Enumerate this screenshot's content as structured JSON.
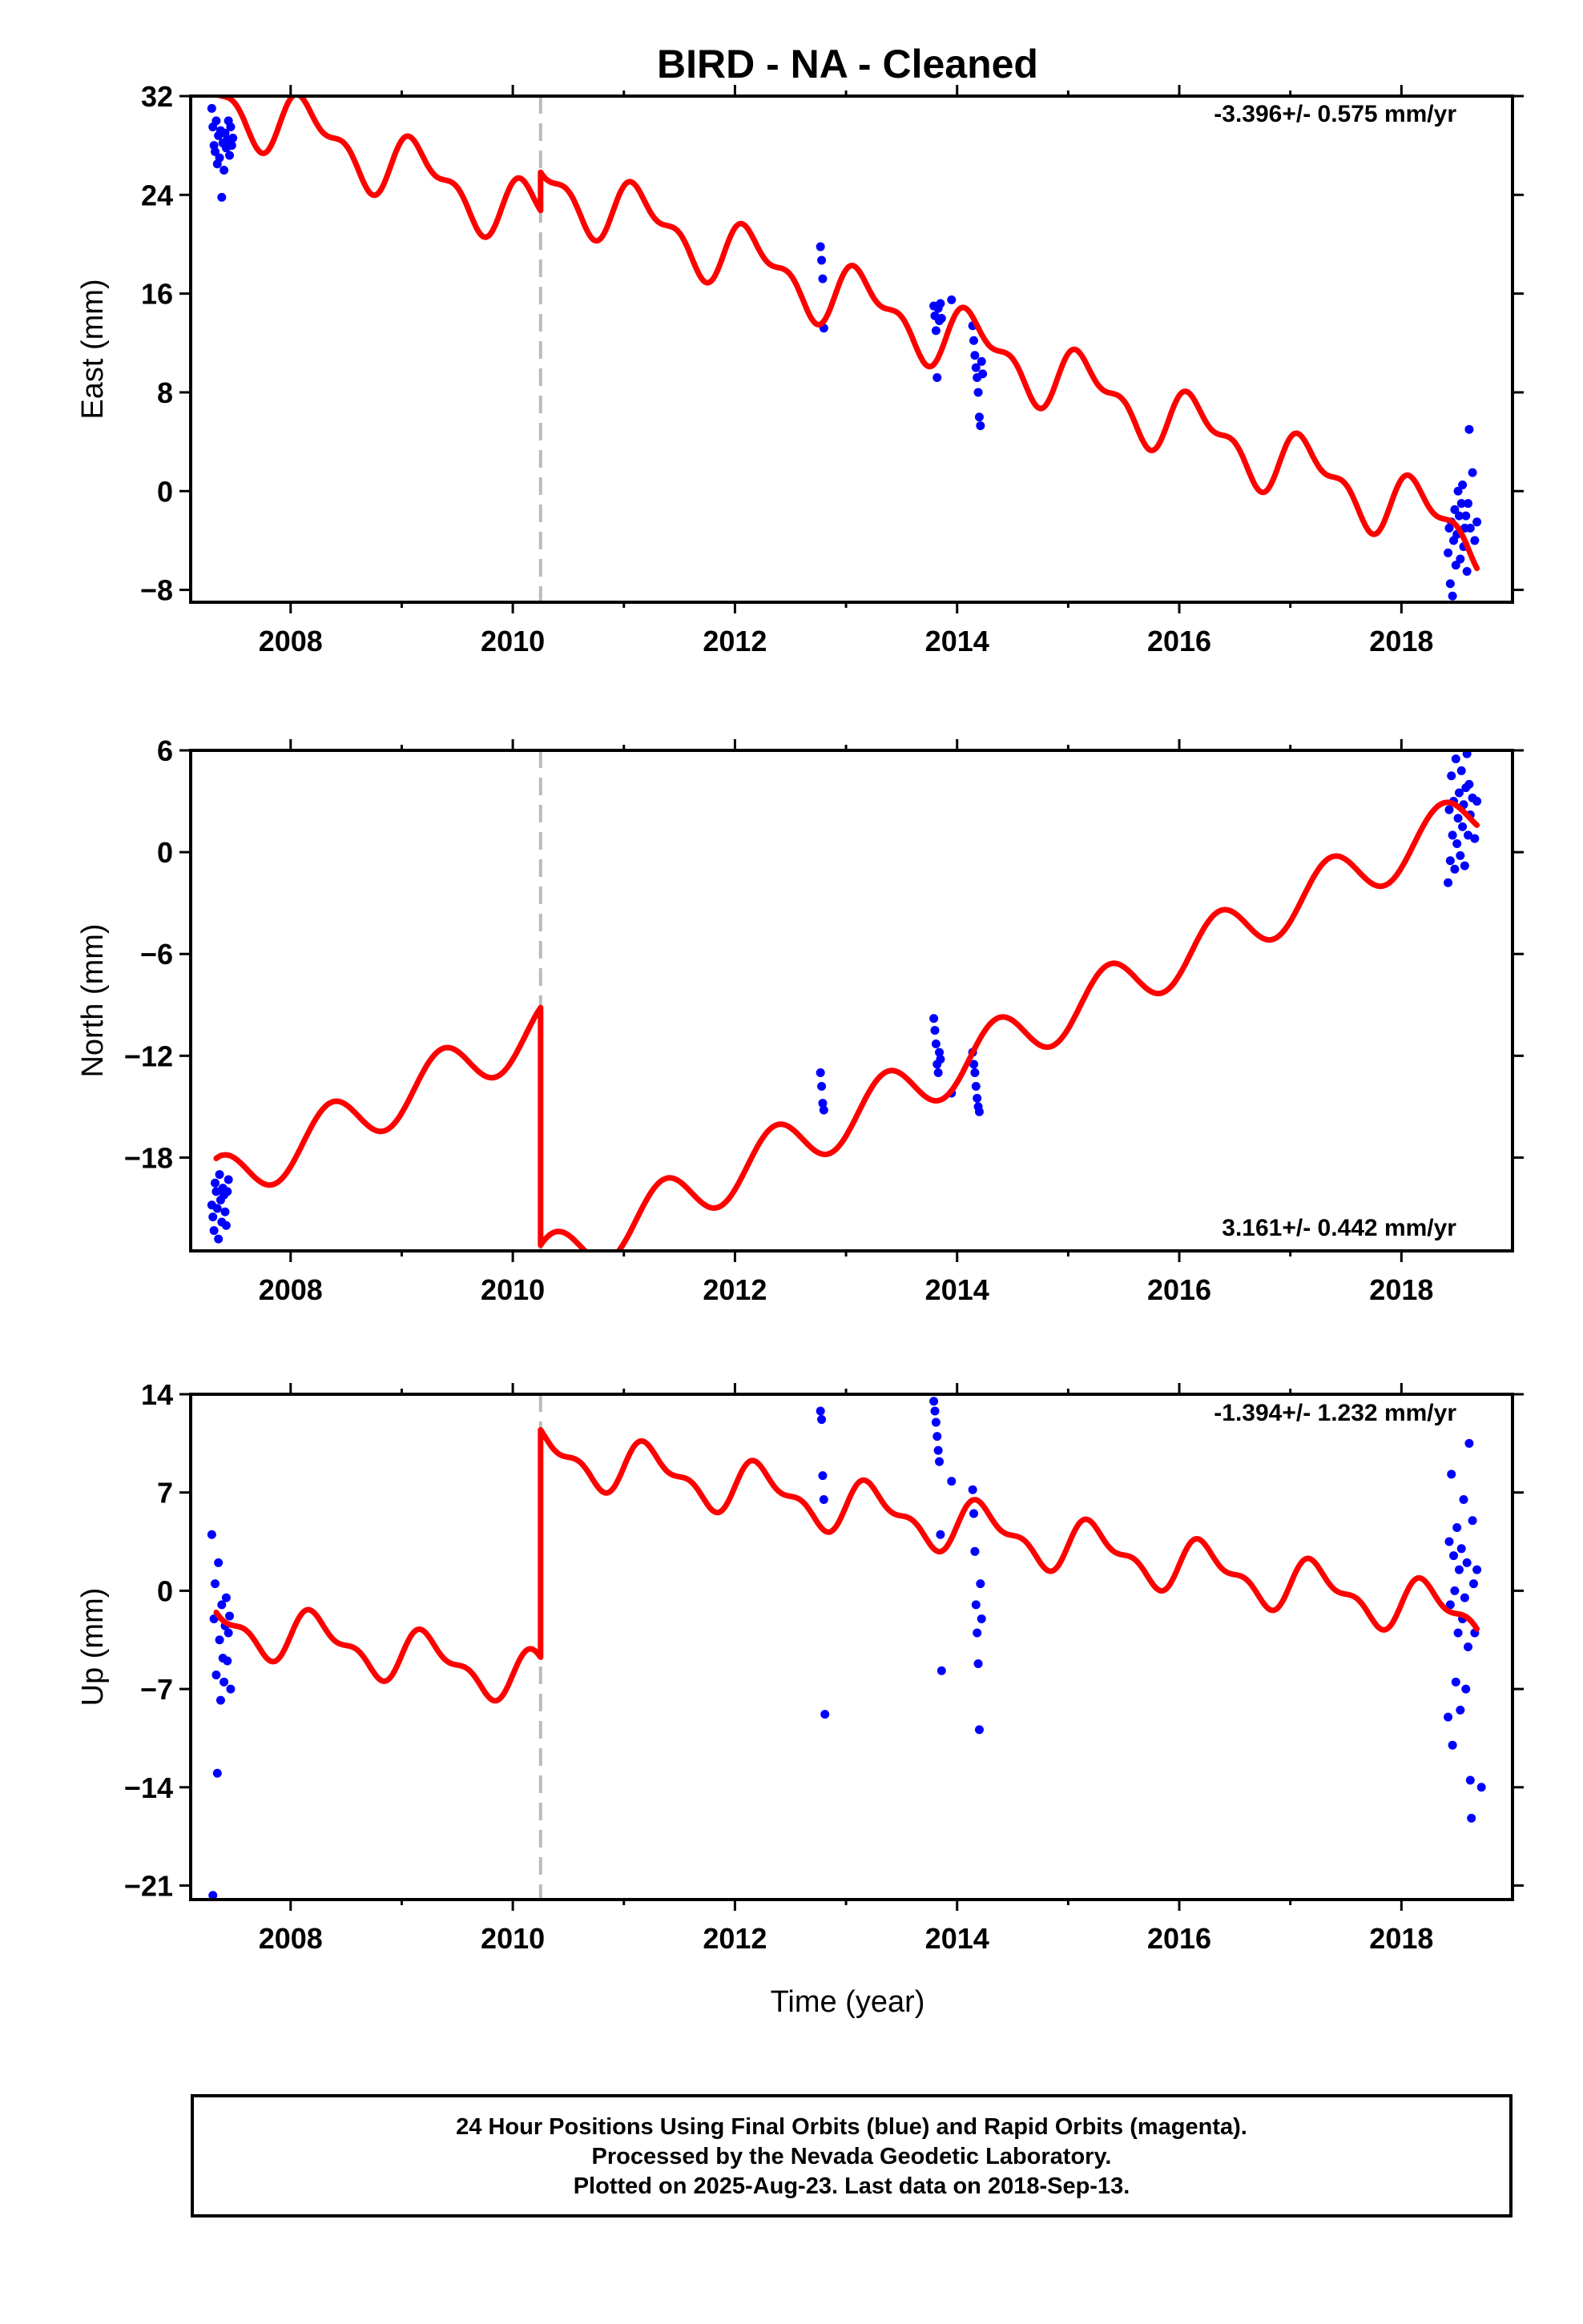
{
  "title": "BIRD  - NA - Cleaned",
  "xlabel": "Time (year)",
  "footer": {
    "line1": "24 Hour Positions Using Final Orbits (blue) and Rapid Orbits (magenta).",
    "line2": "Processed by the Nevada Geodetic Laboratory.",
    "line3": "Plotted on 2025-Aug-23. Last data on 2018-Sep-13."
  },
  "colors": {
    "model": "#ff0000",
    "final_orbits": "#0000ff",
    "break_line": "#bbbbbb",
    "axes": "#000000"
  },
  "chart_data": [
    {
      "type": "scatter",
      "component": "east",
      "ylabel": "East (mm)",
      "ylim": [
        -9,
        32
      ],
      "yticks": [
        32,
        24,
        16,
        8,
        0,
        -8
      ],
      "xlim": [
        2007.1,
        2019.0
      ],
      "xticks": [
        2008,
        2010,
        2012,
        2014,
        2016,
        2018
      ],
      "rate_label": "-3.396+/- 0.575 mm/yr",
      "break_epoch": 2010.25,
      "model": {
        "rate": -3.396,
        "value_at_2008": 29.6,
        "offset_at_break": 3.1,
        "annual_amp": 2.2,
        "semiannual_amp": 1.2,
        "annual_phase": 0.5,
        "semiannual_phase": 1.3
      },
      "series": [
        {
          "color": "blue",
          "x": [
            2007.29,
            2007.3,
            2007.31,
            2007.32,
            2007.33,
            2007.34,
            2007.35,
            2007.36,
            2007.37,
            2007.38,
            2007.39,
            2007.4,
            2007.41,
            2007.42,
            2007.43,
            2007.44,
            2007.45,
            2007.46,
            2007.47,
            2007.48,
            2012.77,
            2012.78,
            2012.79,
            2012.8,
            2013.79,
            2013.8,
            2013.81,
            2013.82,
            2013.83,
            2013.84,
            2013.85,
            2013.86,
            2013.95,
            2014.14,
            2014.15,
            2014.16,
            2014.17,
            2014.18,
            2014.19,
            2014.2,
            2014.21,
            2014.22,
            2014.23,
            2018.42,
            2018.43,
            2018.44,
            2018.45,
            2018.46,
            2018.47,
            2018.48,
            2018.49,
            2018.5,
            2018.51,
            2018.52,
            2018.53,
            2018.54,
            2018.55,
            2018.56,
            2018.57,
            2018.58,
            2018.59,
            2018.6,
            2018.61,
            2018.62,
            2018.64,
            2018.66,
            2018.68
          ],
          "y": [
            31.0,
            29.5,
            28.0,
            27.5,
            30.0,
            26.5,
            28.8,
            27.0,
            29.2,
            23.8,
            28.2,
            26.0,
            29.0,
            27.8,
            28.5,
            30.0,
            27.2,
            29.5,
            28.0,
            28.6,
            19.8,
            18.7,
            17.2,
            13.2,
            15.0,
            14.2,
            13.0,
            9.2,
            14.8,
            13.8,
            15.2,
            14.0,
            15.5,
            13.4,
            12.2,
            11.0,
            10.0,
            9.2,
            8.0,
            6.0,
            5.3,
            10.5,
            9.5,
            -5.0,
            -3.0,
            -7.5,
            -2.5,
            -8.5,
            -4.0,
            -1.5,
            -6.0,
            -3.5,
            0.0,
            -2.0,
            -5.5,
            -1.0,
            0.5,
            -4.5,
            -3.0,
            -2.0,
            -6.5,
            -1.0,
            5.0,
            -3.0,
            1.5,
            -4.0,
            -2.5
          ]
        }
      ]
    },
    {
      "type": "scatter",
      "component": "north",
      "ylabel": "North (mm)",
      "ylim": [
        -23.5,
        6
      ],
      "yticks": [
        6,
        0,
        -6,
        -12,
        -18
      ],
      "xlim": [
        2007.1,
        2019.0
      ],
      "xticks": [
        2008,
        2010,
        2012,
        2014,
        2016,
        2018
      ],
      "rate_label": "3.161+/- 0.442 mm/yr",
      "break_epoch": 2010.25,
      "model": {
        "rate": 3.161,
        "value_at_2008": -17.5,
        "offset_at_break": -14.0,
        "annual_amp": 1.6,
        "semiannual_amp": 0.0,
        "annual_phase": -0.7,
        "semiannual_phase": 0.0
      },
      "series": [
        {
          "color": "blue",
          "x": [
            2007.29,
            2007.3,
            2007.31,
            2007.32,
            2007.33,
            2007.34,
            2007.35,
            2007.36,
            2007.37,
            2007.38,
            2007.39,
            2007.4,
            2007.41,
            2007.42,
            2007.43,
            2007.44,
            2012.77,
            2012.78,
            2012.79,
            2012.8,
            2013.79,
            2013.8,
            2013.81,
            2013.82,
            2013.83,
            2013.84,
            2013.85,
            2013.95,
            2014.14,
            2014.15,
            2014.16,
            2014.17,
            2014.18,
            2014.19,
            2014.2,
            2018.42,
            2018.43,
            2018.44,
            2018.45,
            2018.46,
            2018.47,
            2018.48,
            2018.49,
            2018.5,
            2018.51,
            2018.52,
            2018.53,
            2018.54,
            2018.55,
            2018.56,
            2018.57,
            2018.58,
            2018.59,
            2018.6,
            2018.61,
            2018.62,
            2018.64,
            2018.66,
            2018.68
          ],
          "y": [
            -20.8,
            -21.5,
            -22.3,
            -19.5,
            -20.0,
            -21.0,
            -22.8,
            -19.0,
            -20.5,
            -21.8,
            -19.8,
            -20.2,
            -21.2,
            -22.0,
            -20.0,
            -19.3,
            -13.0,
            -13.8,
            -14.8,
            -15.2,
            -9.8,
            -10.5,
            -11.3,
            -12.5,
            -13.0,
            -11.8,
            -12.2,
            -14.2,
            -11.8,
            -12.5,
            -13.0,
            -13.8,
            -14.5,
            -15.0,
            -15.3,
            -1.8,
            2.5,
            -0.5,
            4.5,
            1.0,
            3.0,
            -1.0,
            5.5,
            0.5,
            2.0,
            3.5,
            -0.2,
            4.8,
            1.5,
            2.8,
            -0.8,
            3.8,
            5.8,
            1.0,
            4.0,
            2.2,
            3.2,
            0.8,
            3.0
          ]
        }
      ]
    },
    {
      "type": "scatter",
      "component": "up",
      "ylabel": "Up (mm)",
      "ylim": [
        -22,
        14
      ],
      "yticks": [
        14,
        7,
        0,
        -7,
        -14,
        -21
      ],
      "xlim": [
        2007.1,
        2019.0
      ],
      "xticks": [
        2008,
        2010,
        2012,
        2014,
        2016,
        2018
      ],
      "rate_label": "-1.394+/- 1.232 mm/yr",
      "break_epoch": 2010.25,
      "model": {
        "rate": -1.394,
        "value_at_2008": -3.2,
        "offset_at_break": 16.2,
        "annual_amp": 1.6,
        "semiannual_amp": 0.8,
        "annual_phase": 0.0,
        "semiannual_phase": 0.0
      },
      "series": [
        {
          "color": "blue",
          "x": [
            2007.29,
            2007.3,
            2007.31,
            2007.32,
            2007.33,
            2007.34,
            2007.35,
            2007.36,
            2007.37,
            2007.38,
            2007.39,
            2007.4,
            2007.41,
            2007.42,
            2007.43,
            2007.44,
            2007.45,
            2007.46,
            2012.77,
            2012.78,
            2012.79,
            2012.8,
            2012.81,
            2013.79,
            2013.8,
            2013.81,
            2013.82,
            2013.83,
            2013.84,
            2013.85,
            2013.86,
            2013.95,
            2014.14,
            2014.15,
            2014.16,
            2014.17,
            2014.18,
            2014.19,
            2014.2,
            2014.21,
            2014.22,
            2018.42,
            2018.43,
            2018.44,
            2018.45,
            2018.46,
            2018.47,
            2018.48,
            2018.49,
            2018.5,
            2018.51,
            2018.52,
            2018.53,
            2018.54,
            2018.55,
            2018.56,
            2018.57,
            2018.58,
            2018.59,
            2018.6,
            2018.61,
            2018.62,
            2018.63,
            2018.64,
            2018.65,
            2018.66,
            2018.68,
            2018.72
          ],
          "y": [
            4.0,
            -21.7,
            -2.0,
            0.5,
            -6.0,
            -13.0,
            2.0,
            -3.5,
            -7.8,
            -1.0,
            -4.8,
            -6.5,
            -2.5,
            -0.5,
            -5.0,
            -3.0,
            -1.8,
            -7.0,
            12.8,
            12.2,
            8.2,
            6.5,
            -8.8,
            13.5,
            12.8,
            12.0,
            11.0,
            10.0,
            9.2,
            4.0,
            -5.7,
            7.8,
            7.2,
            5.5,
            2.8,
            -1.0,
            -3.0,
            -5.2,
            -9.9,
            0.5,
            -2.0,
            -9.0,
            3.5,
            -1.0,
            8.3,
            -11.0,
            2.5,
            0.0,
            -6.5,
            4.5,
            -3.0,
            1.5,
            -8.5,
            3.0,
            -2.0,
            6.5,
            -0.5,
            -7.0,
            2.0,
            -4.0,
            10.5,
            -13.5,
            -16.2,
            5.0,
            0.5,
            -3.0,
            1.5,
            -14.0
          ]
        }
      ]
    }
  ]
}
